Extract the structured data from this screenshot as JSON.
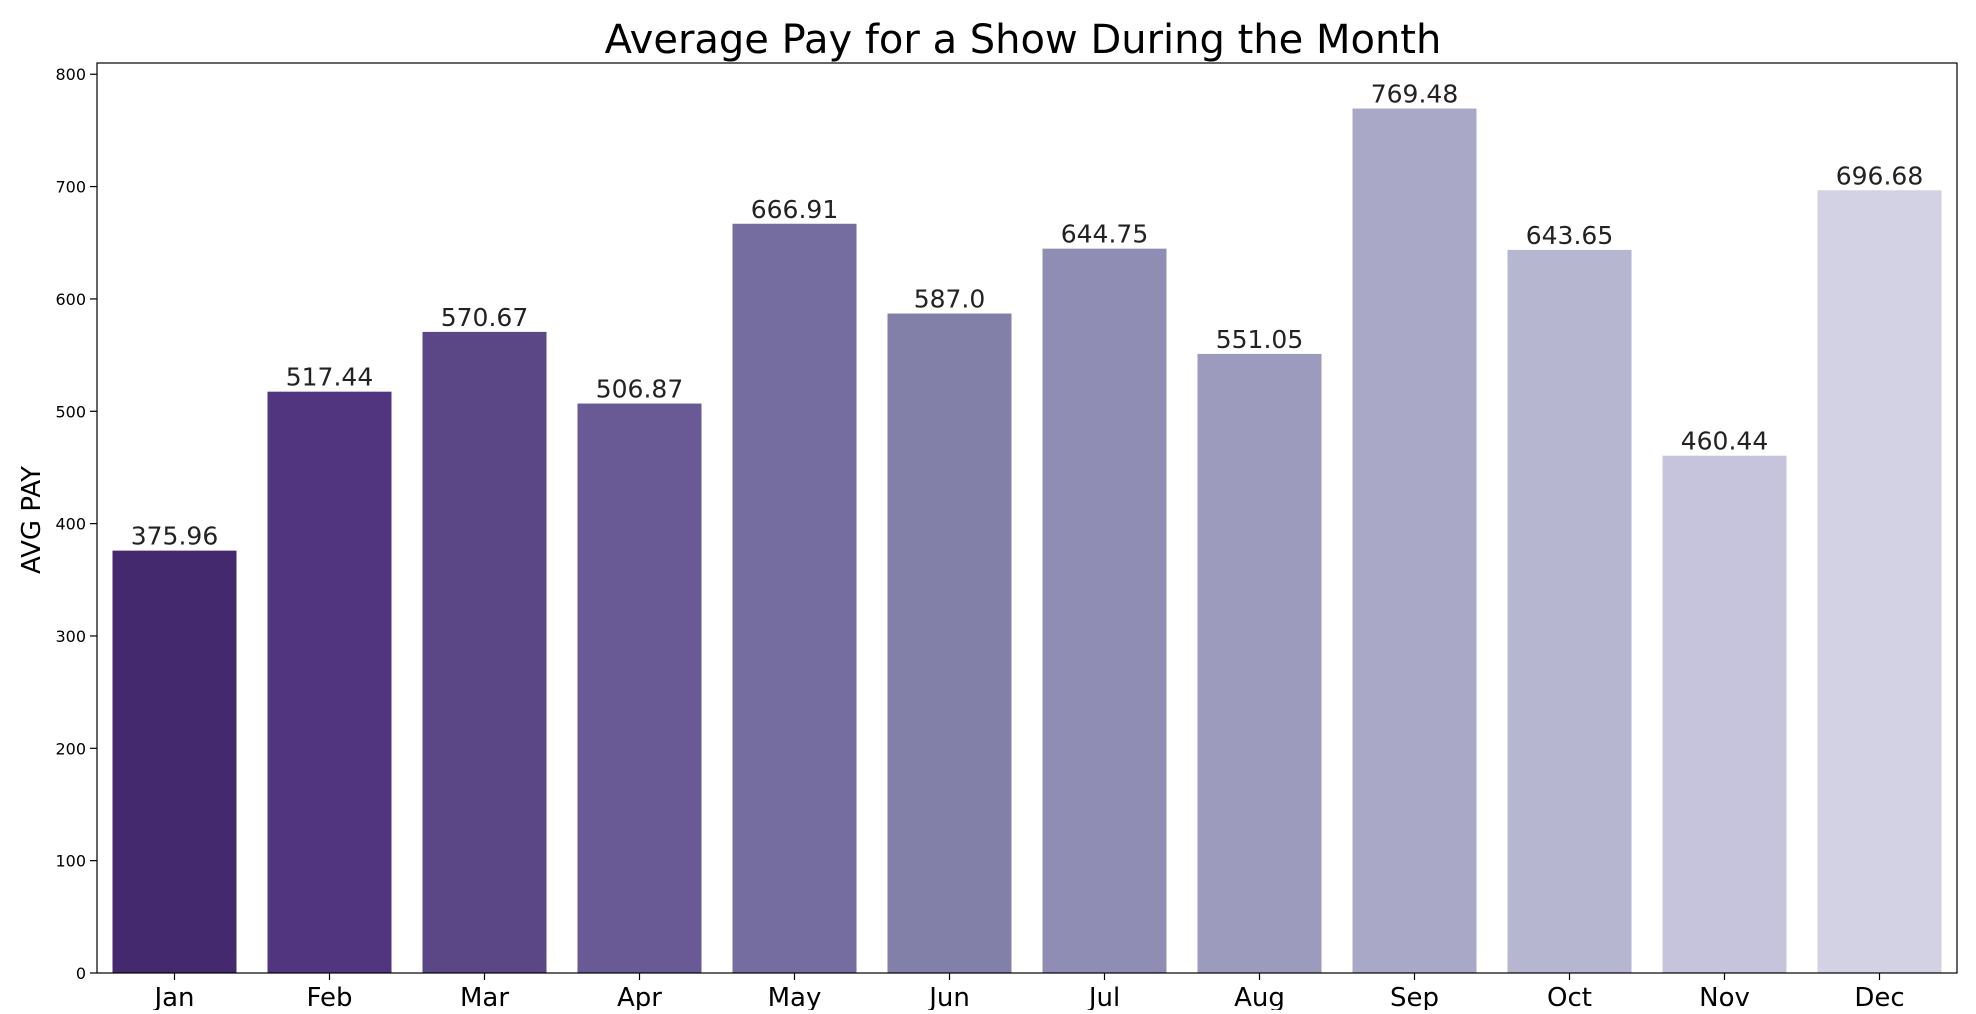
{
  "chart_data": {
    "type": "bar",
    "title": "Average Pay for a Show During the Month",
    "xlabel": "",
    "ylabel": "AVG PAY",
    "categories": [
      "Jan",
      "Feb",
      "Mar",
      "Apr",
      "May",
      "Jun",
      "Jul",
      "Aug",
      "Sep",
      "Oct",
      "Nov",
      "Dec"
    ],
    "values": [
      375.96,
      517.44,
      570.67,
      506.87,
      666.91,
      587.0,
      644.75,
      551.05,
      769.48,
      643.65,
      460.44,
      696.68
    ],
    "value_labels": [
      "375.96",
      "517.44",
      "570.67",
      "506.87",
      "666.91",
      "587.0",
      "644.75",
      "551.05",
      "769.48",
      "643.65",
      "460.44",
      "696.68"
    ],
    "colors": [
      "#45296f",
      "#51367f",
      "#5b4686",
      "#695a95",
      "#756d9f",
      "#827fa9",
      "#8f8db4",
      "#9c9bbd",
      "#a9a9c7",
      "#b7b6d1",
      "#c5c4dc",
      "#d3d2e5"
    ],
    "ylim": [
      0,
      810
    ],
    "yticks": [
      0,
      100,
      200,
      300,
      400,
      500,
      600,
      700,
      800
    ],
    "grid": false,
    "legend": "none"
  }
}
